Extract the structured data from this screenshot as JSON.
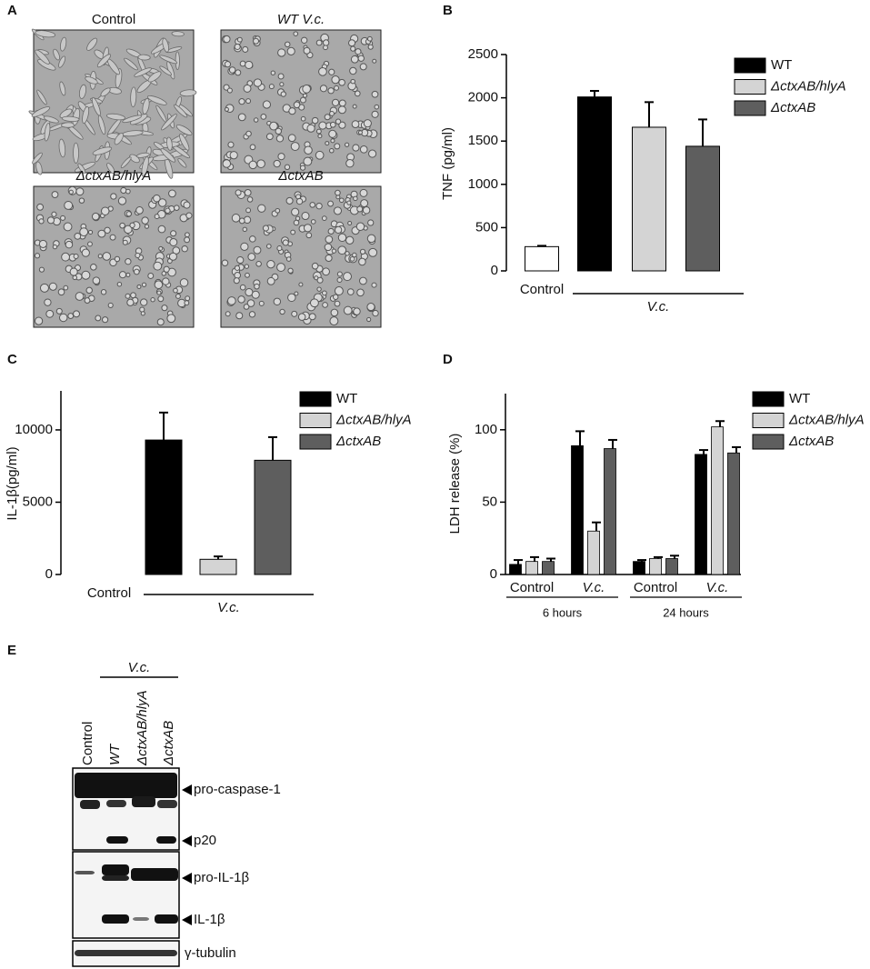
{
  "panels": {
    "a": "A",
    "b": "B",
    "c": "C",
    "d": "D",
    "e": "E"
  },
  "micrographs": [
    "Control",
    "WT V.c.",
    "ΔctxAB/hlyA",
    "ΔctxAB"
  ],
  "chart_data": [
    {
      "type": "bar",
      "y_label": "TNF  (pg/ml)",
      "categories": [
        "Control",
        null,
        null,
        null
      ],
      "values": [
        280,
        2010,
        1660,
        1440
      ],
      "errors": [
        10,
        70,
        290,
        310
      ],
      "colors": [
        "#ffffff",
        "#000000",
        "#d4d4d4",
        "#5e5e5e"
      ],
      "bracket_label": "V.c.",
      "legend": [
        {
          "name": "WT",
          "color": "#000000"
        },
        {
          "name": "ΔctxAB/hlyA",
          "color": "#d4d4d4"
        },
        {
          "name": "ΔctxAB",
          "color": "#5e5e5e"
        }
      ],
      "ylim": [
        0,
        2500
      ],
      "yticks": [
        0,
        500,
        1000,
        1500,
        2000,
        2500
      ]
    },
    {
      "type": "bar",
      "y_label": "IL-1β(pg/ml)",
      "categories": [
        "Control",
        null,
        null,
        null
      ],
      "values": [
        0,
        9300,
        1050,
        7900
      ],
      "errors": [
        0,
        1900,
        200,
        1600
      ],
      "colors": [
        "#ffffff",
        "#000000",
        "#d4d4d4",
        "#5e5e5e"
      ],
      "bracket_label": "V.c.",
      "legend": [
        {
          "name": "WT",
          "color": "#000000"
        },
        {
          "name": "ΔctxAB/hlyA",
          "color": "#d4d4d4"
        },
        {
          "name": "ΔctxAB",
          "color": "#5e5e5e"
        }
      ],
      "ylim": [
        0,
        12700
      ],
      "yticks": [
        0,
        5000,
        10000
      ]
    },
    {
      "type": "grouped_bar",
      "y_label": "LDH release (%)",
      "categories": [
        "Control",
        "V.c.",
        "Control",
        "V.c."
      ],
      "groups": [
        "6 hours",
        "24 hours"
      ],
      "series": [
        {
          "name": "WT",
          "color": "#000000",
          "values": [
            7,
            89,
            9,
            83
          ],
          "errors": [
            3,
            10,
            1,
            3
          ]
        },
        {
          "name": "ΔctxAB/hlyA",
          "color": "#d4d4d4",
          "values": [
            9,
            30,
            11,
            102
          ],
          "errors": [
            3,
            6,
            1,
            4
          ]
        },
        {
          "name": "ΔctxAB",
          "color": "#5e5e5e",
          "values": [
            9,
            87,
            11,
            84
          ],
          "errors": [
            2,
            6,
            2,
            4
          ]
        }
      ],
      "ylim": [
        0,
        125
      ],
      "yticks": [
        0,
        50,
        100
      ]
    }
  ],
  "blot": {
    "group_label": "V.c.",
    "lanes": [
      "Control",
      "WT",
      "ΔctxAB/hlyA",
      "ΔctxAB"
    ],
    "labels": [
      "pro-caspase-1",
      "p20",
      "pro-IL-1β",
      "IL-1β",
      "γ-tubulin"
    ]
  }
}
